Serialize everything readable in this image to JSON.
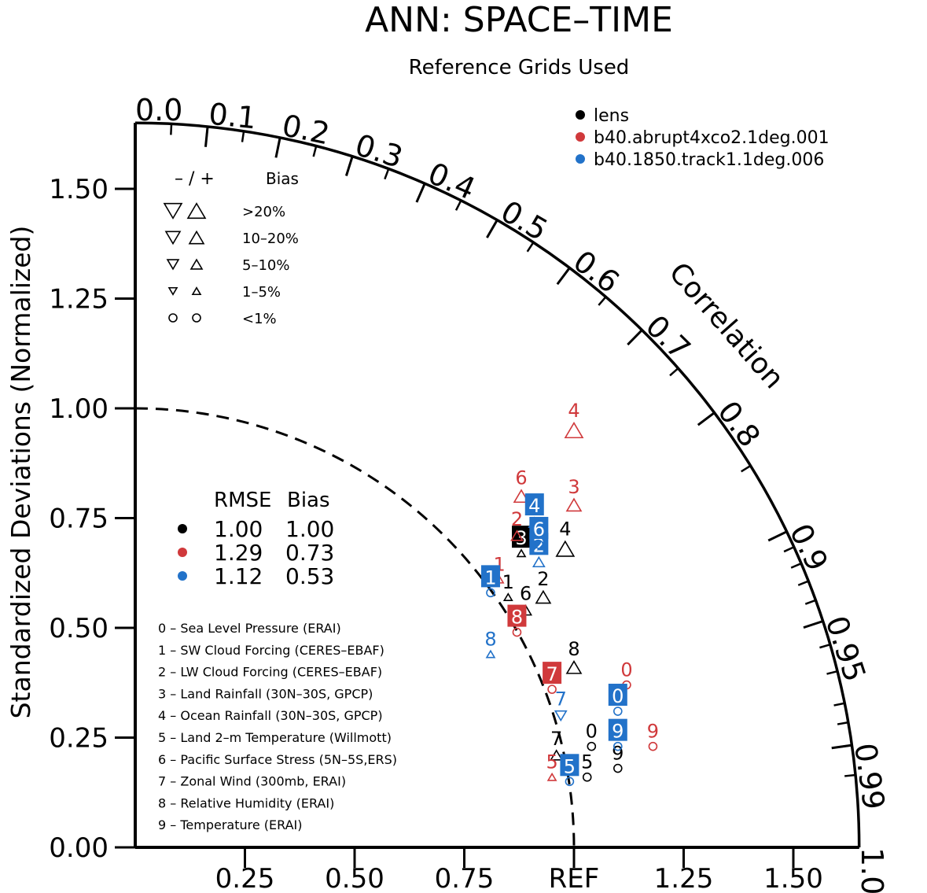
{
  "chart_data": {
    "type": "taylor-diagram",
    "title": "ANN: SPACE–TIME",
    "subtitle": "Reference Grids Used",
    "ylabel": "Standardized Deviations (Normalized)",
    "arc_label": "Correlation",
    "ref_label": "REF",
    "std_range": [
      0,
      1.65
    ],
    "y_ticks": [
      "0.00",
      "0.25",
      "0.50",
      "0.75",
      "1.00",
      "1.25",
      "1.50"
    ],
    "x_ticks": [
      {
        "value": 0.25,
        "label": "0.25"
      },
      {
        "value": 0.5,
        "label": "0.50"
      },
      {
        "value": 0.75,
        "label": "0.75"
      },
      {
        "value": 1.0,
        "label": "REF"
      },
      {
        "value": 1.25,
        "label": "1.25"
      },
      {
        "value": 1.5,
        "label": "1.50"
      }
    ],
    "correlation_ticks": [
      "0.0",
      "0.1",
      "0.2",
      "0.3",
      "0.4",
      "0.5",
      "0.6",
      "0.7",
      "0.8",
      "0.9",
      "0.95",
      "0.99",
      "1.0"
    ],
    "legend": {
      "series": [
        {
          "name": "lens",
          "color": "#000000"
        },
        {
          "name": "b40.abrupt4xco2.1deg.001",
          "color": "#d0393b"
        },
        {
          "name": "b40.1850.track1.1deg.006",
          "color": "#2272c9"
        }
      ],
      "bias_header_sign": "– / +",
      "bias_header": "Bias",
      "bias_levels": [
        ">20%",
        "10–20%",
        "5–10%",
        "1–5%",
        "<1%"
      ],
      "rmse_header_rmse": "RMSE",
      "rmse_header_bias": "Bias",
      "rmse_rows": [
        {
          "rmse": "1.00",
          "bias": "1.00",
          "color": "#000000"
        },
        {
          "rmse": "1.29",
          "bias": "0.73",
          "color": "#d0393b"
        },
        {
          "rmse": "1.12",
          "bias": "0.53",
          "color": "#2272c9"
        }
      ]
    },
    "variables": [
      "0 – Sea Level Pressure (ERAI)",
      "1 – SW Cloud Forcing (CERES–EBAF)",
      "2 – LW Cloud Forcing (CERES–EBAF)",
      "3 – Land Rainfall (30N–30S, GPCP)",
      "4 – Ocean Rainfall (30N–30S, GPCP)",
      "5 – Land 2–m Temperature (Willmott)",
      "6 – Pacific Surface Stress (5N–5S,ERS)",
      "7 – Zonal Wind (300mb, ERAI)",
      "8 – Relative Humidity (ERAI)",
      "9 – Temperature (ERAI)"
    ],
    "series": [
      {
        "name": "lens",
        "points": [
          {
            "id": "0",
            "x": 1.04,
            "y": 0.23,
            "marker": "circle",
            "bias_level": "<1%",
            "label": "0"
          },
          {
            "id": "1",
            "x": 0.85,
            "y": 0.57,
            "marker": "up",
            "bias_level": "1–5%",
            "label": "1"
          },
          {
            "id": "2",
            "x": 0.93,
            "y": 0.57,
            "marker": "up",
            "bias_level": "10–20%",
            "label": "2"
          },
          {
            "id": "3",
            "x": 0.88,
            "y": 0.67,
            "marker": "up",
            "bias_level": "1–5%",
            "label": "3",
            "boxed": true
          },
          {
            "id": "4",
            "x": 0.98,
            "y": 0.68,
            "marker": "up",
            "bias_level": ">20%",
            "label": "4"
          },
          {
            "id": "5",
            "x": 1.03,
            "y": 0.16,
            "marker": "circle",
            "bias_level": "<1%",
            "label": "5"
          },
          {
            "id": "6",
            "x": 0.89,
            "y": 0.54,
            "marker": "up",
            "bias_level": "5–10%",
            "label": "6"
          },
          {
            "id": "7",
            "x": 0.96,
            "y": 0.21,
            "marker": "up",
            "bias_level": "5–10%",
            "label": "7"
          },
          {
            "id": "8",
            "x": 1.0,
            "y": 0.41,
            "marker": "up",
            "bias_level": "10–20%",
            "label": "8"
          },
          {
            "id": "9",
            "x": 1.1,
            "y": 0.18,
            "marker": "circle",
            "bias_level": "<1%",
            "label": "9"
          }
        ]
      },
      {
        "name": "b40.abrupt4xco2.1deg.001",
        "points": [
          {
            "id": "0",
            "x": 1.12,
            "y": 0.37,
            "marker": "circle",
            "bias_level": "<1%",
            "label": "0"
          },
          {
            "id": "1",
            "x": 0.83,
            "y": 0.61,
            "marker": "up",
            "bias_level": "1–5%",
            "label": "1"
          },
          {
            "id": "2",
            "x": 0.87,
            "y": 0.71,
            "marker": "up",
            "bias_level": "5–10%",
            "label": "2"
          },
          {
            "id": "3",
            "x": 1.0,
            "y": 0.78,
            "marker": "up",
            "bias_level": "10–20%",
            "label": "3"
          },
          {
            "id": "4",
            "x": 1.0,
            "y": 0.95,
            "marker": "up",
            "bias_level": ">20%",
            "label": "4"
          },
          {
            "id": "5",
            "x": 0.95,
            "y": 0.16,
            "marker": "up",
            "bias_level": "1–5%",
            "label": "5"
          },
          {
            "id": "6",
            "x": 0.88,
            "y": 0.8,
            "marker": "up",
            "bias_level": "10–20%",
            "label": "6"
          },
          {
            "id": "7",
            "x": 0.95,
            "y": 0.36,
            "marker": "circle",
            "bias_level": "<1%",
            "label": "7",
            "boxed": true
          },
          {
            "id": "8",
            "x": 0.87,
            "y": 0.49,
            "marker": "circle",
            "bias_level": "<1%",
            "label": "8",
            "boxed": true
          },
          {
            "id": "9",
            "x": 1.18,
            "y": 0.23,
            "marker": "circle",
            "bias_level": "<1%",
            "label": "9"
          }
        ]
      },
      {
        "name": "b40.1850.track1.1deg.006",
        "points": [
          {
            "id": "0",
            "x": 1.1,
            "y": 0.31,
            "marker": "circle",
            "bias_level": "<1%",
            "label": "0",
            "boxed": true
          },
          {
            "id": "1",
            "x": 0.81,
            "y": 0.58,
            "marker": "circle",
            "bias_level": "<1%",
            "label": "1",
            "boxed": true
          },
          {
            "id": "2",
            "x": 0.92,
            "y": 0.65,
            "marker": "up",
            "bias_level": "5–10%",
            "label": "2",
            "boxed": true
          },
          {
            "id": "4",
            "x": 0.91,
            "y": 0.74,
            "marker": "up",
            "bias_level": "5–10%",
            "label": "4",
            "boxed": true
          },
          {
            "id": "5",
            "x": 0.99,
            "y": 0.15,
            "marker": "circle",
            "bias_level": "<1%",
            "label": "5",
            "boxed": true
          },
          {
            "id": "6",
            "x": 0.92,
            "y": 0.69,
            "marker": "circle",
            "bias_level": "<1%",
            "label": "6",
            "boxed": true
          },
          {
            "id": "7",
            "x": 0.97,
            "y": 0.3,
            "marker": "down",
            "bias_level": "5–10%",
            "label": "7"
          },
          {
            "id": "8",
            "x": 0.81,
            "y": 0.44,
            "marker": "up",
            "bias_level": "1–5%",
            "label": "8"
          },
          {
            "id": "9",
            "x": 1.1,
            "y": 0.23,
            "marker": "circle",
            "bias_level": "<1%",
            "label": "9",
            "boxed": true
          }
        ]
      }
    ]
  }
}
